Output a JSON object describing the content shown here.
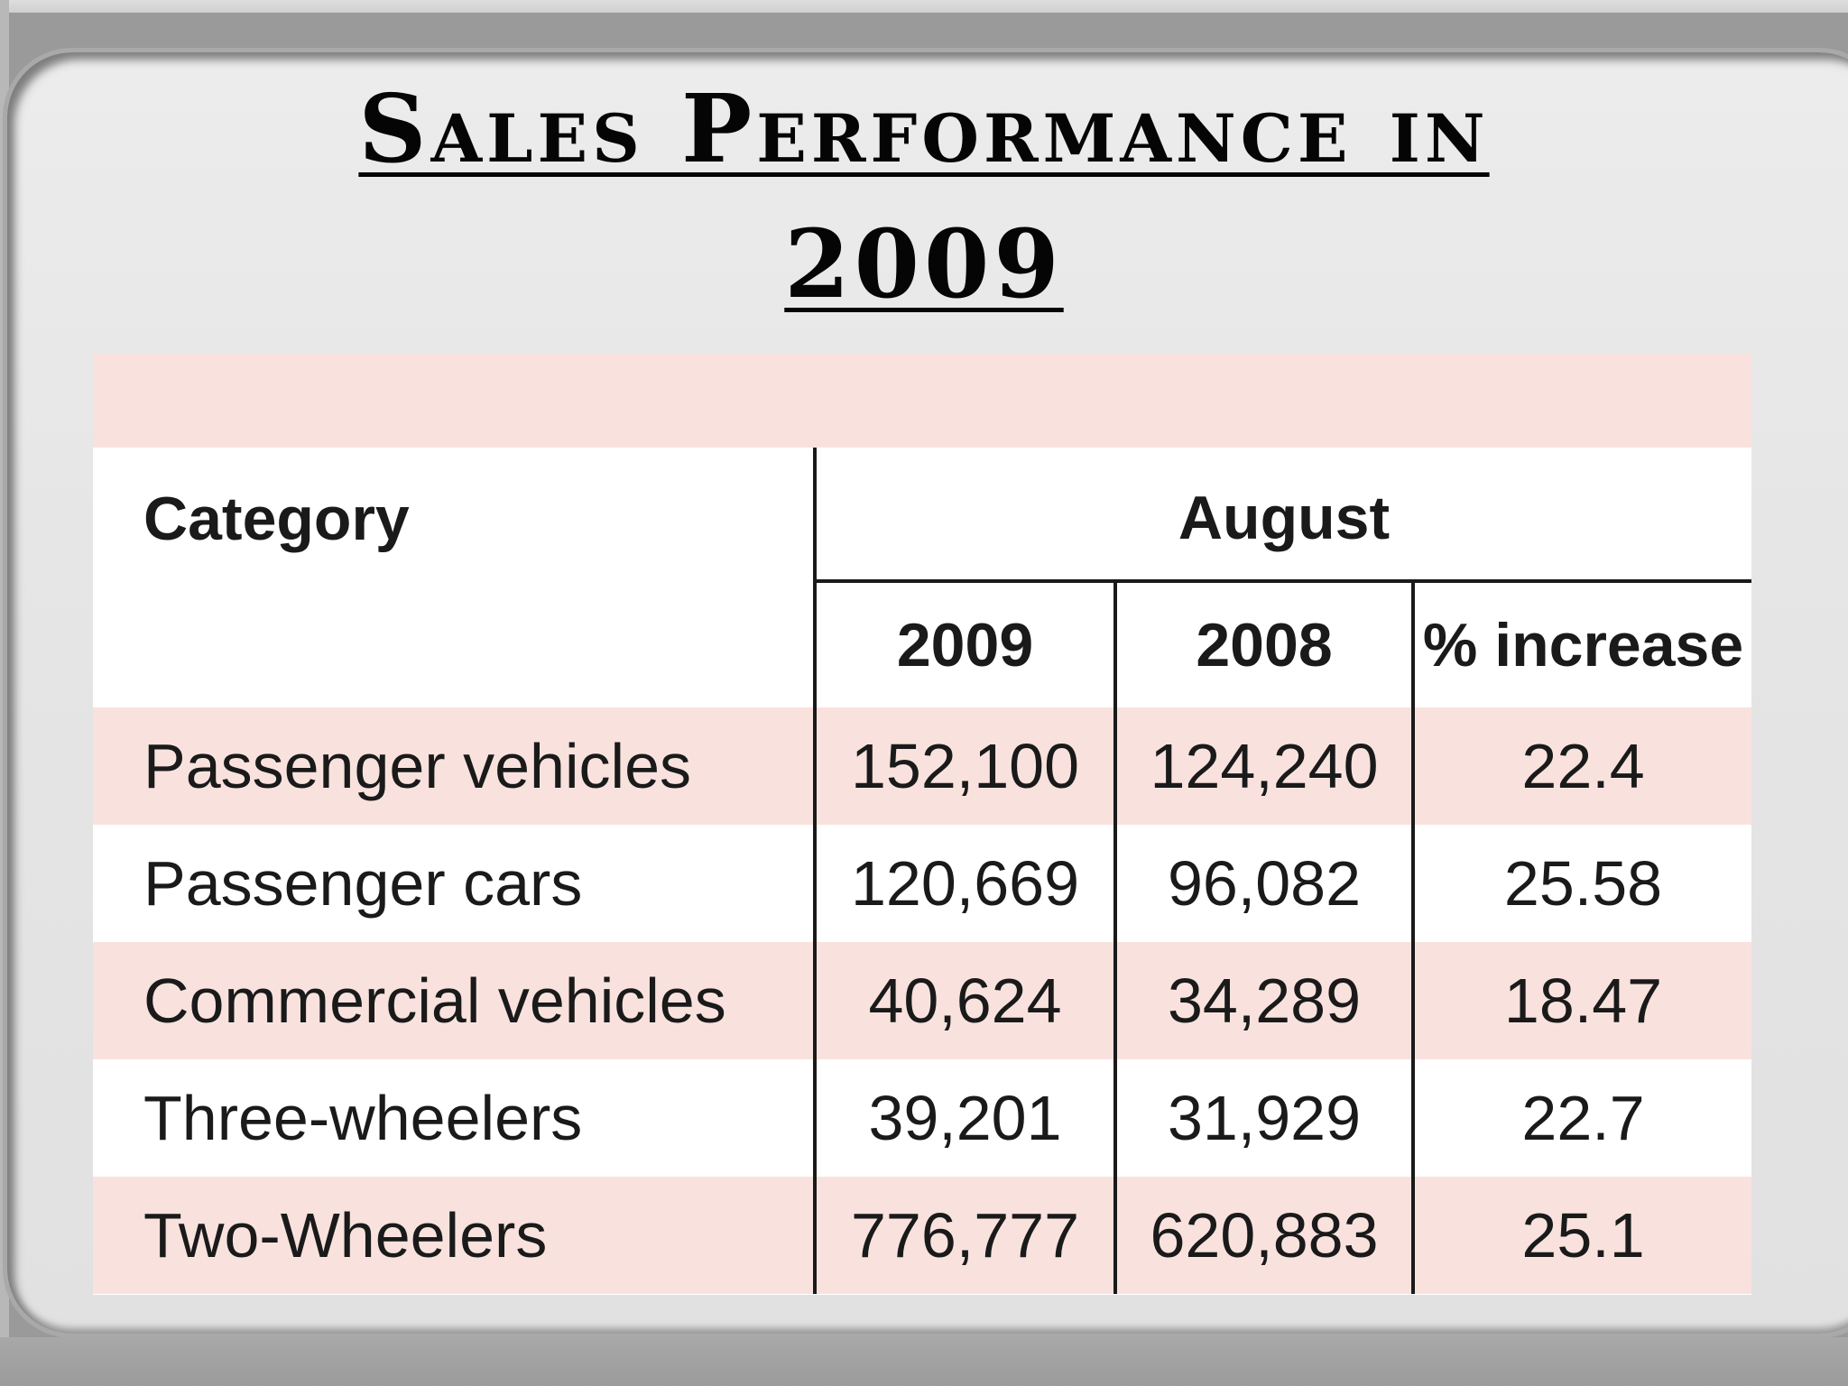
{
  "slide": {
    "title_line1": "Sales Performance in",
    "title_line2": "2009"
  },
  "table": {
    "category_header": "Category",
    "group_header": "August",
    "year_headers": [
      "2009",
      "2008",
      "% increase"
    ],
    "rows": [
      {
        "category": "Passenger vehicles",
        "y2009": "152,100",
        "y2008": "124,240",
        "increase": "22.4"
      },
      {
        "category": "Passenger cars",
        "y2009": "120,669",
        "y2008": "96,082",
        "increase": "25.58"
      },
      {
        "category": "Commercial vehicles",
        "y2009": "40,624",
        "y2008": "34,289",
        "increase": "18.47"
      },
      {
        "category": "Three-wheelers",
        "y2009": "39,201",
        "y2008": "31,929",
        "increase": "22.7"
      },
      {
        "category": "Two-Wheelers",
        "y2009": "776,777",
        "y2008": "620,883",
        "increase": "25.1"
      }
    ]
  },
  "colors": {
    "band": "#f9e2de",
    "row_alt": "#ffffff",
    "text": "#1a1a1a",
    "slide_bg": "#e6e6e6",
    "frame": "#9a9a9a"
  }
}
